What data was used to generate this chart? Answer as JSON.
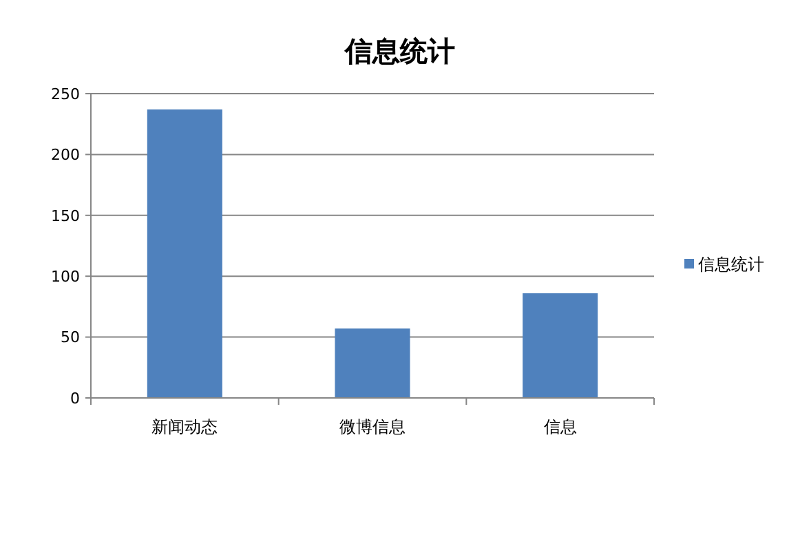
{
  "chart_data": {
    "type": "bar",
    "title": "信息统计",
    "categories": [
      "新闻动态",
      "微博信息",
      "信息"
    ],
    "series": [
      {
        "name": "信息统计",
        "color": "#4f81bd",
        "values": [
          237,
          57,
          86
        ]
      }
    ],
    "ylim": [
      0,
      250
    ],
    "yticks": [
      0,
      50,
      100,
      150,
      200,
      250
    ],
    "grid": "y",
    "legend": "right"
  }
}
